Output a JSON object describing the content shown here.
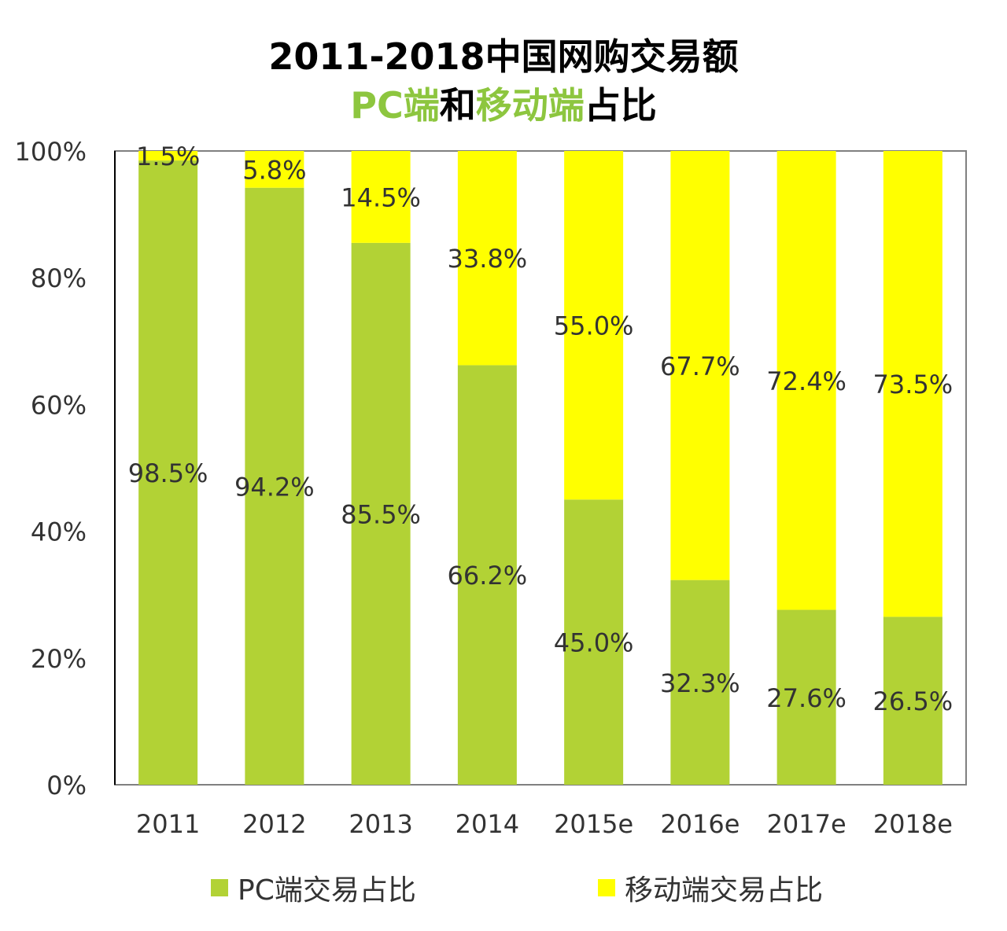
{
  "title": {
    "line1": "2011-2018中国网购交易额",
    "line2_parts": [
      {
        "text": "PC端",
        "color": "#8dc63f"
      },
      {
        "text": "和",
        "color": "#000000"
      },
      {
        "text": "移动端",
        "color": "#8dc63f"
      },
      {
        "text": "占比",
        "color": "#000000"
      }
    ]
  },
  "colors": {
    "pc": "#b2d235",
    "mobile": "#ffff00",
    "axis": "#808080",
    "label": "#333333"
  },
  "legend": {
    "pc_label": "PC端交易占比",
    "mobile_label": "移动端交易占比"
  },
  "chart_data": {
    "type": "bar",
    "stacked": true,
    "title": "2011-2018中国网购交易额 PC端和移动端占比",
    "categories": [
      "2011",
      "2012",
      "2013",
      "2014",
      "2015e",
      "2016e",
      "2017e",
      "2018e"
    ],
    "series": [
      {
        "name": "PC端交易占比",
        "values": [
          98.5,
          94.2,
          85.5,
          66.2,
          45.0,
          32.3,
          27.6,
          26.5
        ],
        "labels": [
          "98.5%",
          "94.2%",
          "85.5%",
          "66.2%",
          "45.0%",
          "32.3%",
          "27.6%",
          "26.5%"
        ]
      },
      {
        "name": "移动端交易占比",
        "values": [
          1.5,
          5.8,
          14.5,
          33.8,
          55.0,
          67.7,
          72.4,
          73.5
        ],
        "labels": [
          "1.5%",
          "5.8%",
          "14.5%",
          "33.8%",
          "55.0%",
          "67.7%",
          "72.4%",
          "73.5%"
        ]
      }
    ],
    "ylim": [
      0,
      100
    ],
    "yticks": [
      "0%",
      "20%",
      "40%",
      "60%",
      "80%",
      "100%"
    ],
    "xlabel": "",
    "ylabel": "",
    "grid": false,
    "legend_position": "bottom"
  }
}
